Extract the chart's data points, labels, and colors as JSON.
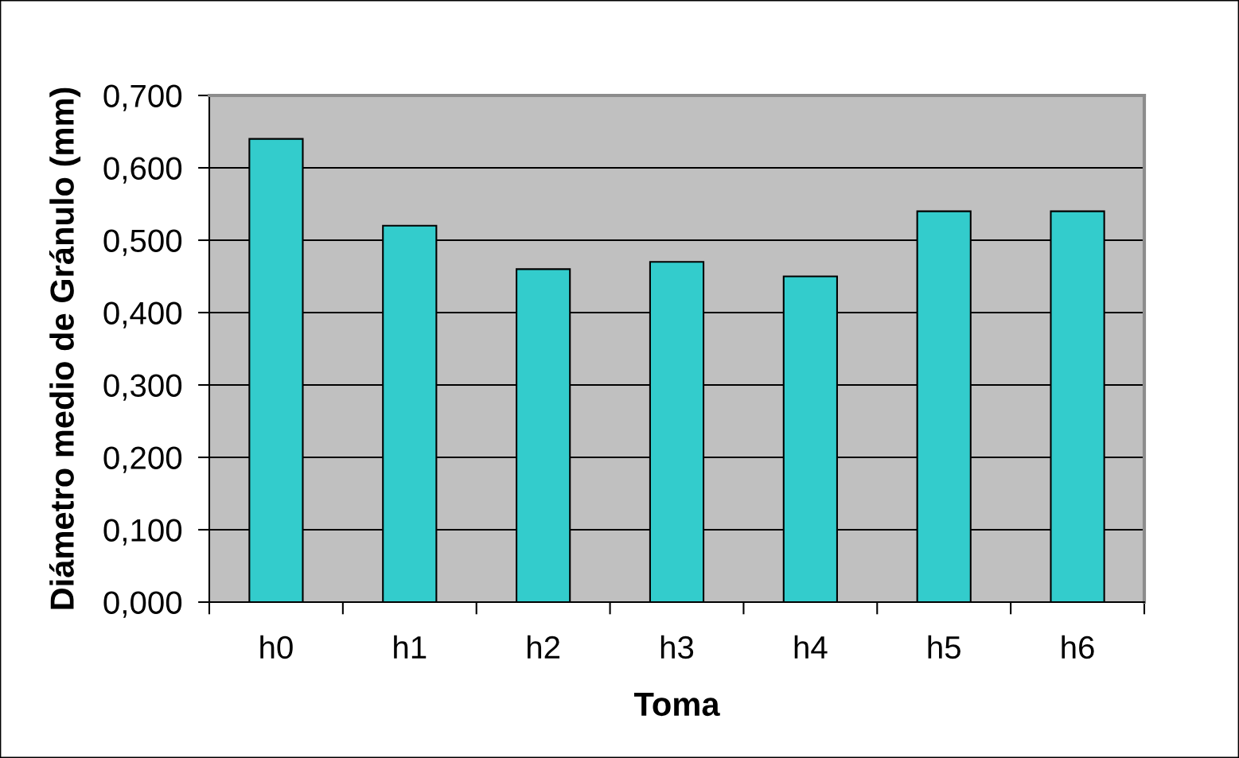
{
  "chart_data": {
    "type": "bar",
    "xlabel": "Toma",
    "ylabel": "Diámetro medio de Gránulo (mm)",
    "categories": [
      "h0",
      "h1",
      "h2",
      "h3",
      "h4",
      "h5",
      "h6"
    ],
    "values": [
      0.64,
      0.52,
      0.46,
      0.47,
      0.45,
      0.54,
      0.54
    ],
    "color": "#33cccc",
    "ylim": [
      0,
      0.7
    ],
    "yticks": [
      {
        "value": 0,
        "label": "0,000"
      },
      {
        "value": 0.1,
        "label": "0,100"
      },
      {
        "value": 0.2,
        "label": "0,200"
      },
      {
        "value": 0.3,
        "label": "0,300"
      },
      {
        "value": 0.4,
        "label": "0,400"
      },
      {
        "value": 0.5,
        "label": "0,500"
      },
      {
        "value": 0.6,
        "label": "0,600"
      },
      {
        "value": 0.7,
        "label": "0,700"
      }
    ],
    "grid": "y"
  }
}
